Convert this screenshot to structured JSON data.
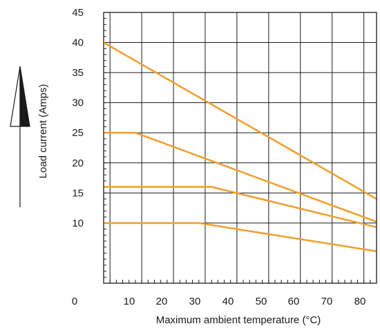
{
  "chart_data": {
    "type": "line",
    "xlabel": "Maximum ambient temperature (°C)",
    "ylabel": "Load current (Amps)",
    "xlim": [
      0,
      86
    ],
    "ylim": [
      0,
      45
    ],
    "xticks": [
      0,
      10,
      20,
      30,
      40,
      50,
      60,
      70,
      80
    ],
    "xtick_labels": [
      "0",
      "10",
      "20",
      "30",
      "40",
      "50",
      "60",
      "70",
      "80"
    ],
    "yticks": [
      10,
      15,
      20,
      25,
      30,
      35,
      40,
      45
    ],
    "ytick_labels": [
      "10",
      "15",
      "20",
      "25",
      "30",
      "35",
      "40",
      "45"
    ],
    "grid": true,
    "line_color": "#f0a030",
    "series": [
      {
        "points": [
          [
            0,
            40
          ],
          [
            86,
            14
          ]
        ]
      },
      {
        "points": [
          [
            0,
            25
          ],
          [
            10,
            25
          ],
          [
            86,
            10.2
          ]
        ]
      },
      {
        "points": [
          [
            0,
            16
          ],
          [
            34,
            16
          ],
          [
            86,
            9.3
          ]
        ]
      },
      {
        "points": [
          [
            0,
            10
          ],
          [
            30,
            10
          ],
          [
            86,
            5.3
          ]
        ]
      }
    ],
    "indicator": "arrow-up"
  }
}
